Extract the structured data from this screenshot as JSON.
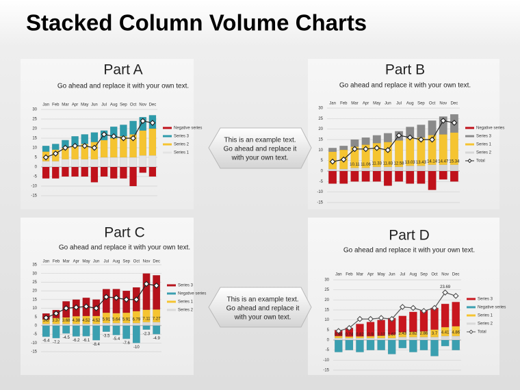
{
  "title": "Stacked Column Volume Charts",
  "callouts": [
    {
      "lines": [
        "This is an example text.",
        "Go ahead and replace it",
        "with your own text."
      ]
    },
    {
      "lines": [
        "This is an example text.",
        "Go ahead and replace it",
        "with your own text."
      ]
    }
  ],
  "chart_data": [
    {
      "type": "bar",
      "stacked": true,
      "title": "Part A",
      "subtitle": "Go ahead and replace it with your own text.",
      "categories": [
        "Jan",
        "Feb",
        "Mar",
        "Apr",
        "May",
        "Jun",
        "Jul",
        "Aug",
        "Sep",
        "Oct",
        "Nov",
        "Dec"
      ],
      "ylim": [
        -15,
        30
      ],
      "yticks": [
        30,
        25,
        20,
        15,
        10,
        5,
        0,
        -5,
        -10,
        -15
      ],
      "grid": true,
      "series": [
        {
          "name": "Negative series",
          "color": "#c0121b",
          "values": [
            -6,
            -6,
            -5,
            -5,
            -5,
            -8,
            -5,
            -6,
            -6,
            -10,
            -3,
            -5
          ]
        },
        {
          "name": "Series 3",
          "color": "#2e9bab",
          "values": [
            3,
            3,
            4,
            5,
            5,
            5,
            5,
            6,
            6,
            7,
            7,
            7
          ]
        },
        {
          "name": "Series 2",
          "color": "#f5c431",
          "values": [
            5,
            6,
            6,
            7,
            8,
            9,
            9,
            10,
            11,
            12,
            13,
            14
          ]
        },
        {
          "name": "Series 1",
          "color": "#e4e4e4",
          "values": [
            3,
            3,
            4,
            4,
            4,
            4,
            5,
            5,
            5,
            5,
            6,
            6
          ]
        },
        {
          "type": "line",
          "color": "#222222",
          "values": [
            5,
            7,
            10,
            11,
            11,
            10,
            17,
            16,
            15,
            15,
            24,
            23
          ]
        }
      ]
    },
    {
      "type": "bar",
      "stacked": true,
      "title": "Part B",
      "subtitle": "Go ahead and replace it with your own text.",
      "categories": [
        "Jan",
        "Feb",
        "Mar",
        "Apr",
        "May",
        "Jun",
        "Jul",
        "Aug",
        "Sep",
        "Oct",
        "Nov",
        "Dec"
      ],
      "ylim": [
        -15,
        30
      ],
      "yticks": [
        30,
        25,
        20,
        15,
        10,
        5,
        0,
        -5,
        -10,
        -15
      ],
      "grid": true,
      "series": [
        {
          "name": "Negative series",
          "color": "#c0121b",
          "values": [
            -6,
            -6,
            -5,
            -5,
            -5,
            -7,
            -5,
            -6,
            -6,
            -9,
            -4,
            -5
          ]
        },
        {
          "name": "Series 3",
          "color": "#8a8a8a",
          "values": [
            1.8,
            1.9,
            3.4,
            3.4,
            3.7,
            4.2,
            4.4,
            5.5,
            6.1,
            6.9,
            8.5,
            8.7
          ]
        },
        {
          "name": "Series 1",
          "color": "#f5c431",
          "values": [
            8.2,
            9.1,
            10.11,
            11.06,
            11.33,
            11.83,
            12.58,
            13.03,
            13.43,
            14.14,
            14.47,
            15.34
          ],
          "value_labels": [
            null,
            null,
            "10.11",
            "11.06",
            "11.33",
            "11.83",
            "12.58",
            "13.03",
            "13.43",
            "14.14",
            "14.47",
            "15.34"
          ]
        },
        {
          "name": "Series 2",
          "color": "#d6d6d6",
          "values": [
            1,
            1,
            1.5,
            1.5,
            2,
            2,
            2,
            2.5,
            2.5,
            3,
            3,
            3
          ]
        },
        {
          "name": "Total",
          "type": "line",
          "color": "#222222",
          "values": [
            4.5,
            5.5,
            10.5,
            10.5,
            11,
            10,
            17,
            16,
            15,
            15,
            24,
            23
          ]
        }
      ]
    },
    {
      "type": "bar",
      "stacked": true,
      "title": "Part C",
      "subtitle": "Go ahead and replace it with your own text.",
      "categories": [
        "Jan",
        "Feb",
        "Mar",
        "Apr",
        "May",
        "Jun",
        "Jul",
        "Aug",
        "Sep",
        "Oct",
        "Nov",
        "Dec"
      ],
      "ylim": [
        -15,
        35
      ],
      "yticks": [
        35,
        30,
        25,
        20,
        15,
        10,
        5,
        0,
        -5,
        -10,
        -15
      ],
      "grid": true,
      "series": [
        {
          "name": "Series 3",
          "color": "#b5121b",
          "values": [
            3.5,
            4.6,
            9.3,
            9.6,
            10.5,
            9.5,
            13.6,
            13.9,
            12.6,
            13.7,
            20.9,
            19.7
          ]
        },
        {
          "name": "Negative series",
          "color": "#3a9fb0",
          "values": [
            -6.4,
            -7.2,
            -4.5,
            -6.2,
            -6.1,
            -8.4,
            -3.5,
            -5.4,
            -7.6,
            -10,
            -2.3,
            -4.9
          ],
          "labels": true
        },
        {
          "name": "Series 1",
          "color": "#f5c431",
          "values": [
            2.5,
            3.37,
            3.68,
            4.38,
            4.52,
            4.52,
            5.91,
            5.64,
            5.91,
            6.79,
            7.11,
            7.27
          ],
          "labels": true
        },
        {
          "name": "Series 2",
          "color": "#d9d9d9",
          "values": [
            1,
            1,
            1,
            1,
            1,
            1,
            1.5,
            1.5,
            1.5,
            1.5,
            2,
            2
          ]
        },
        {
          "type": "line",
          "color": "#222222",
          "values": [
            4.5,
            7,
            10,
            10.5,
            11,
            10,
            16.5,
            16,
            15,
            15,
            24,
            23
          ]
        }
      ]
    },
    {
      "type": "bar",
      "stacked": true,
      "title": "Part D",
      "subtitle": "Go ahead and replace it with your own text.",
      "categories": [
        "Jan",
        "Feb",
        "Mar",
        "Apr",
        "May",
        "Jun",
        "Jul",
        "Aug",
        "Sep",
        "Oct",
        "Nov",
        "Dec"
      ],
      "ylim": [
        -15,
        30
      ],
      "yticks": [
        30,
        25,
        20,
        15,
        10,
        5,
        0,
        -5,
        -10,
        -15
      ],
      "grid": true,
      "series": [
        {
          "name": "Series 3",
          "color": "#c8161e",
          "values": [
            3,
            4.3,
            6.2,
            7.1,
            7.8,
            8.3,
            8.1,
            9.9,
            10.6,
            10.8,
            11.6,
            12.1
          ]
        },
        {
          "name": "Negative series",
          "color": "#3a9fb0",
          "values": [
            -6,
            -5,
            -6,
            -5,
            -5,
            -7,
            -4,
            -6,
            -5,
            -8,
            -3,
            -5
          ]
        },
        {
          "name": "Series 1",
          "color": "#f5c431",
          "values": [
            0.96,
            0.74,
            0.82,
            0.9,
            1.17,
            1.67,
            2.43,
            2.62,
            2.86,
            3.7,
            4.41,
            4.86
          ],
          "labels": true
        },
        {
          "name": "Series 2",
          "color": "#d9d9d9",
          "values": [
            1,
            1,
            1,
            1,
            1,
            1,
            1.5,
            1.5,
            1.5,
            1.5,
            2,
            2
          ]
        },
        {
          "name": "Total",
          "type": "line",
          "color": "#555555",
          "values": [
            4.5,
            6,
            10.5,
            10.5,
            11,
            10.5,
            16.5,
            16,
            14.5,
            16,
            23.69,
            22
          ],
          "value_labels": [
            null,
            null,
            null,
            null,
            null,
            null,
            null,
            null,
            null,
            null,
            "23.69",
            null
          ]
        }
      ]
    }
  ]
}
